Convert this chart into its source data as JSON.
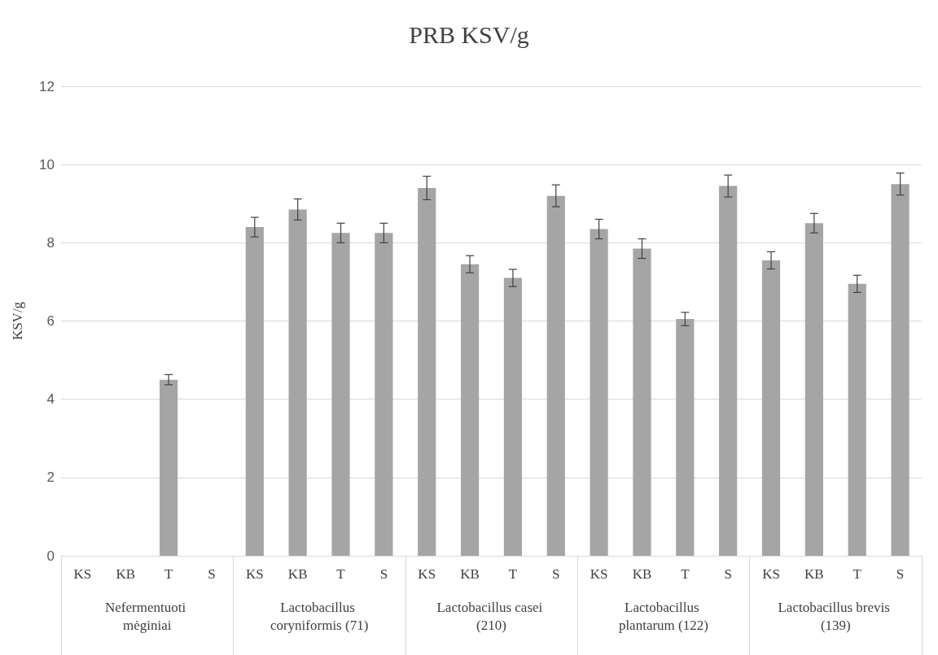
{
  "chart_data": {
    "type": "bar",
    "title": "PRB KSV/g",
    "ylabel": "KSV/g",
    "categories": [
      "KS",
      "KB",
      "T",
      "S",
      "KS",
      "KB",
      "T",
      "S",
      "KS",
      "KB",
      "T",
      "S",
      "KS",
      "KB",
      "T",
      "S",
      "KS",
      "KB",
      "T",
      "S"
    ],
    "annotations": [
      "Nefermentuoti mėginiai",
      "Lactobacillus coryniformis (71)",
      "Lactobacillus casei (210)",
      "Lactobacillus plantarum (122)",
      "Lactobacillus brevis (139)"
    ],
    "values": [
      0,
      0,
      4.5,
      0,
      8.4,
      8.85,
      8.25,
      8.25,
      9.4,
      7.45,
      7.1,
      9.2,
      8.35,
      7.85,
      6.05,
      9.45,
      7.55,
      8.5,
      6.95,
      9.5
    ],
    "errors": [
      null,
      null,
      0.13,
      null,
      0.25,
      0.27,
      0.25,
      0.25,
      0.3,
      0.22,
      0.22,
      0.28,
      0.25,
      0.25,
      0.17,
      0.28,
      0.22,
      0.25,
      0.22,
      0.28
    ],
    "color": "#a5a5a5",
    "ylim": [
      0,
      12
    ],
    "yticks": [
      0,
      2,
      4,
      6,
      8,
      10,
      12
    ],
    "grid": "y"
  }
}
